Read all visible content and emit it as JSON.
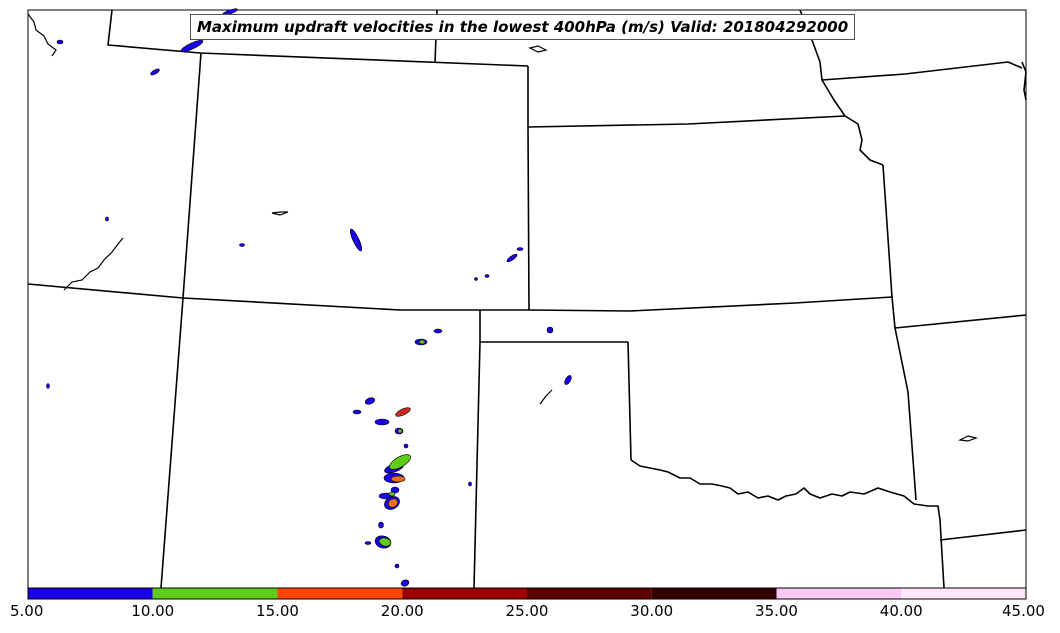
{
  "title": "Maximum updraft velocities in the lowest 400hPa (m/s) Valid: 201804292000",
  "colorbar": {
    "labels": [
      "5.00",
      "10.00",
      "15.00",
      "20.00",
      "25.00",
      "30.00",
      "35.00",
      "40.00",
      "45.00"
    ],
    "colors": [
      "#1a00e6",
      "#5fcc1a",
      "#ff4500",
      "#9b0000",
      "#5a0000",
      "#330000",
      "#f9c8f5",
      "#fde6fb"
    ],
    "range": [
      5,
      45
    ]
  },
  "contour_colors": {
    "low": "#1a00e6",
    "mid": "#5fcc1a",
    "high": "#e8701a",
    "peak": "#cc2a1a",
    "outline": "#000000"
  }
}
